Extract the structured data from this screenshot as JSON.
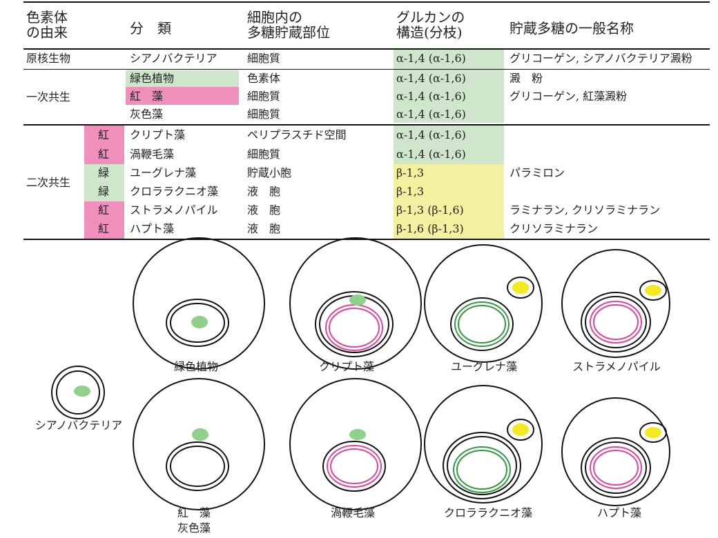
{
  "colors": {
    "green_bg": "#cfe6cc",
    "red_bg": "#ee8fbc",
    "yellow_bg": "#f3f0a0",
    "green_plastid": "#8fd08b",
    "green_membrane": "#2e9a3c",
    "red_membrane": "#e6409a",
    "yellow_grain": "#f2ea1e",
    "line": "#111111"
  },
  "table": {
    "headers": {
      "origin": "色素体\nの由来",
      "group": "分　類",
      "location": "細胞内の\n多糖貯蔵部位",
      "glucan": "グルカンの\n構造(分枝)",
      "name": "貯蔵多糖の一般名称"
    },
    "sections": {
      "prokaryote": "原核生物",
      "primary": "一次共生",
      "secondary": "二次共生"
    },
    "rows": [
      {
        "tag": "",
        "group": "シアノバクテリア",
        "location": "細胞質",
        "glucan": "α-1,4 (α-1,6)",
        "name": "グリコーゲン, シアノバクテリア澱粉"
      },
      {
        "tag": "",
        "group": "緑色植物",
        "location": "色素体",
        "glucan": "α-1,4 (α-1,6)",
        "name": "澱　粉"
      },
      {
        "tag": "",
        "group": "紅　藻",
        "location": "細胞質",
        "glucan": "α-1,4 (α-1,6)",
        "name": "グリコーゲン, 紅藻澱粉"
      },
      {
        "tag": "",
        "group": "灰色藻",
        "location": "細胞質",
        "glucan": "α-1,4 (α-1,6)",
        "name": ""
      },
      {
        "tag": "紅",
        "group": "クリプト藻",
        "location": "ペリプラスチド空間",
        "glucan": "α-1,4 (α-1,6)",
        "name": ""
      },
      {
        "tag": "紅",
        "group": "渦鞭毛藻",
        "location": "細胞質",
        "glucan": "α-1,4 (α-1,6)",
        "name": ""
      },
      {
        "tag": "緑",
        "group": "ユーグレナ藻",
        "location": "貯蔵小胞",
        "glucan": "β-1,3",
        "name": "パラミロン"
      },
      {
        "tag": "緑",
        "group": "クロララクニオ藻",
        "location": "液　胞",
        "glucan": "β-1,3",
        "name": ""
      },
      {
        "tag": "紅",
        "group": "ストラメノパイル",
        "location": "液　胞",
        "glucan": "β-1,3 (β-1,6)",
        "name": "ラミナラン, クリソラミナラン"
      },
      {
        "tag": "紅",
        "group": "ハプト藻",
        "location": "液　胞",
        "glucan": "β-1,6 (β-1,3)",
        "name": "クリソラミナラン"
      }
    ]
  },
  "diagrams": {
    "cyanobacteria": "シアノバクテリア",
    "green_plants": "緑色植物",
    "cryptophyte": "クリプト藻",
    "euglenophyte": "ユーグレナ藻",
    "stramenopile": "ストラメノパイル",
    "red_glaucophyte": "紅　藻\n灰色藻",
    "dinoflagellate": "渦鞭毛藻",
    "chlorarachniophyte": "クロララクニオ藻",
    "haptophyte": "ハプト藻"
  }
}
